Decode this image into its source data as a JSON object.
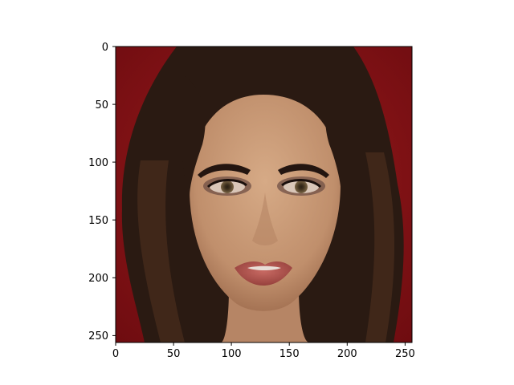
{
  "image": {
    "subject": "portrait-photo",
    "description_icon": "face-portrait-image",
    "colors": {
      "background": "#8b1116",
      "hair": "#2a1a12",
      "skin": "#c99a78",
      "lips": "#a94a45",
      "eyes": "#5b4630"
    }
  },
  "axes": {
    "x_ticks": [
      "0",
      "50",
      "100",
      "150",
      "200",
      "250"
    ],
    "y_ticks": [
      "0",
      "50",
      "100",
      "150",
      "200",
      "250"
    ],
    "xlim": [
      0,
      256
    ],
    "ylim": [
      256,
      0
    ]
  }
}
